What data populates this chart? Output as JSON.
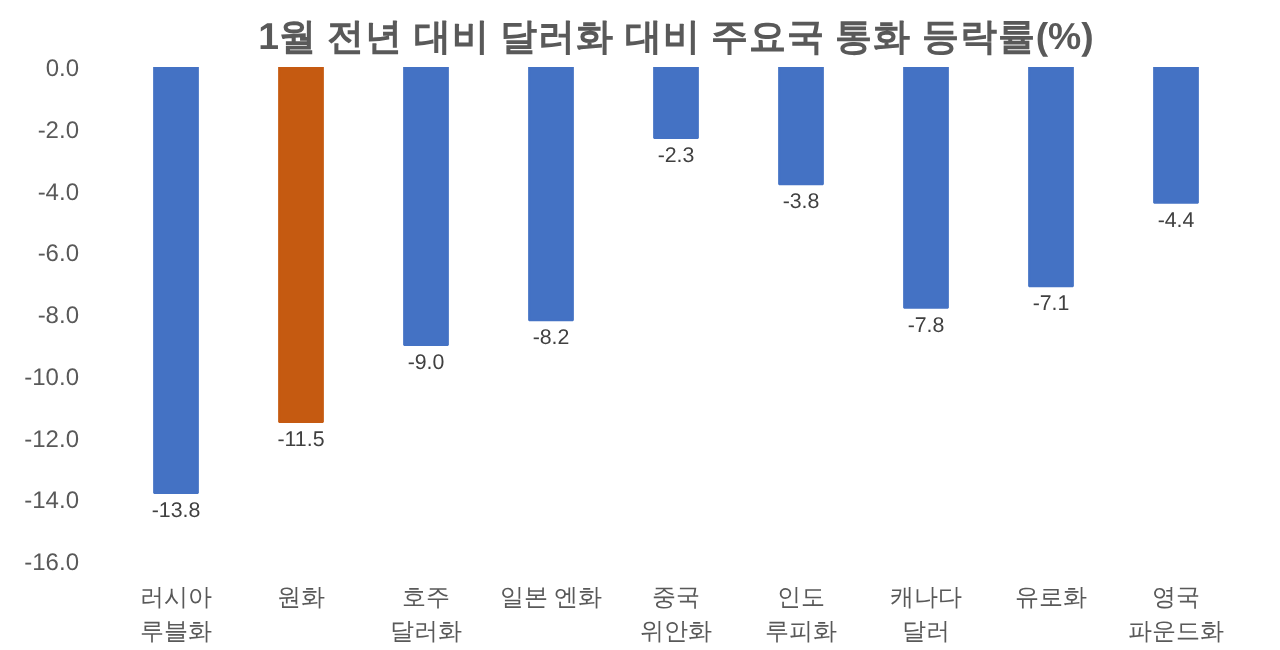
{
  "chart_data": {
    "type": "bar",
    "title": "1월 전년 대비 달러화 대비 주요국 통화 등락률(%)",
    "categories": [
      "러시아\n루블화",
      "원화",
      "호주\n달러화",
      "일본 엔화",
      "중국\n위안화",
      "인도\n루피화",
      "캐나다\n달러",
      "유로화",
      "영국\n파운드화"
    ],
    "values": [
      -13.8,
      -11.5,
      -9.0,
      -8.2,
      -2.3,
      -3.8,
      -7.8,
      -7.1,
      -4.4
    ],
    "colors": [
      "#4472c4",
      "#c55a11",
      "#4472c4",
      "#4472c4",
      "#4472c4",
      "#4472c4",
      "#4472c4",
      "#4472c4",
      "#4472c4"
    ],
    "value_labels": [
      "-13.8",
      "-11.5",
      "-9.0",
      "-8.2",
      "-2.3",
      "-3.8",
      "-7.8",
      "-7.1",
      "-4.4"
    ],
    "ylim": [
      -16,
      0
    ],
    "yticks": [
      {
        "value": 0,
        "label": "0.0"
      },
      {
        "value": -2,
        "label": "-2.0"
      },
      {
        "value": -4,
        "label": "-4.0"
      },
      {
        "value": -6,
        "label": "-6.0"
      },
      {
        "value": -8,
        "label": "-8.0"
      },
      {
        "value": -10,
        "label": "-10.0"
      },
      {
        "value": -12,
        "label": "-12.0"
      },
      {
        "value": -14,
        "label": "-14.0"
      },
      {
        "value": -16,
        "label": "-16.0"
      }
    ],
    "grid": false
  }
}
